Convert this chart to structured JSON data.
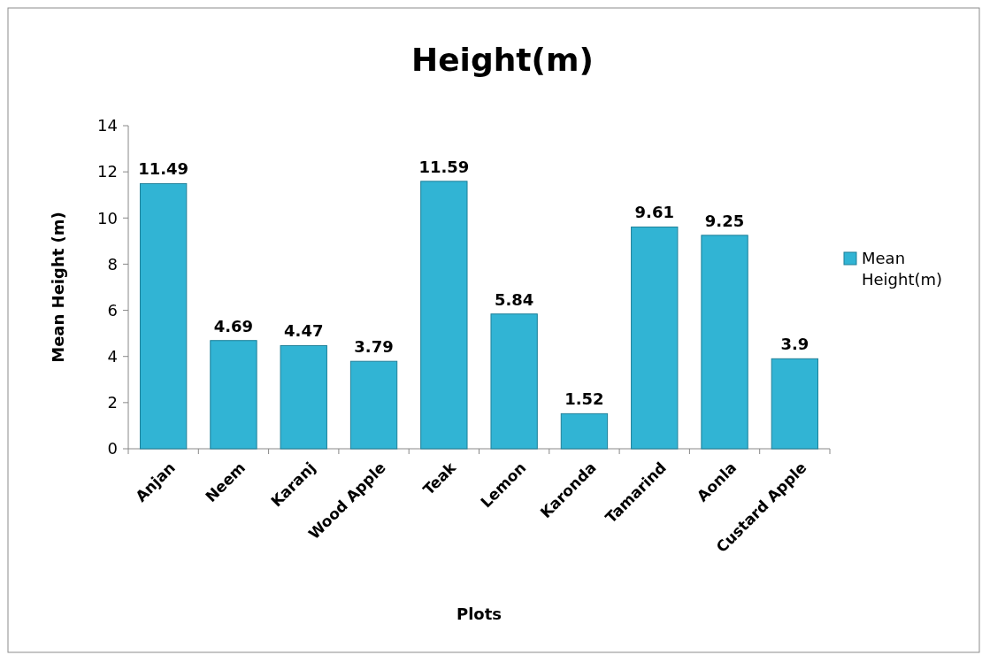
{
  "chart_data": {
    "type": "bar",
    "title": "Height(m)",
    "xlabel": "Plots",
    "ylabel": "Mean Height (m)",
    "categories": [
      "Anjan",
      "Neem",
      "Karanj",
      "Wood Apple",
      "Teak",
      "Lemon",
      "Karonda",
      "Tamarind",
      "Aonla",
      "Custard Apple"
    ],
    "series": [
      {
        "name": "Mean Height(m)",
        "color": "#31b4d4",
        "values": [
          11.49,
          4.69,
          4.47,
          3.79,
          11.59,
          5.84,
          1.52,
          9.61,
          9.25,
          3.9
        ]
      }
    ],
    "ylim": [
      0,
      14
    ],
    "yticks": [
      0,
      2,
      4,
      6,
      8,
      10,
      12,
      14
    ],
    "data_labels": true,
    "legend": "right",
    "grid": false
  }
}
